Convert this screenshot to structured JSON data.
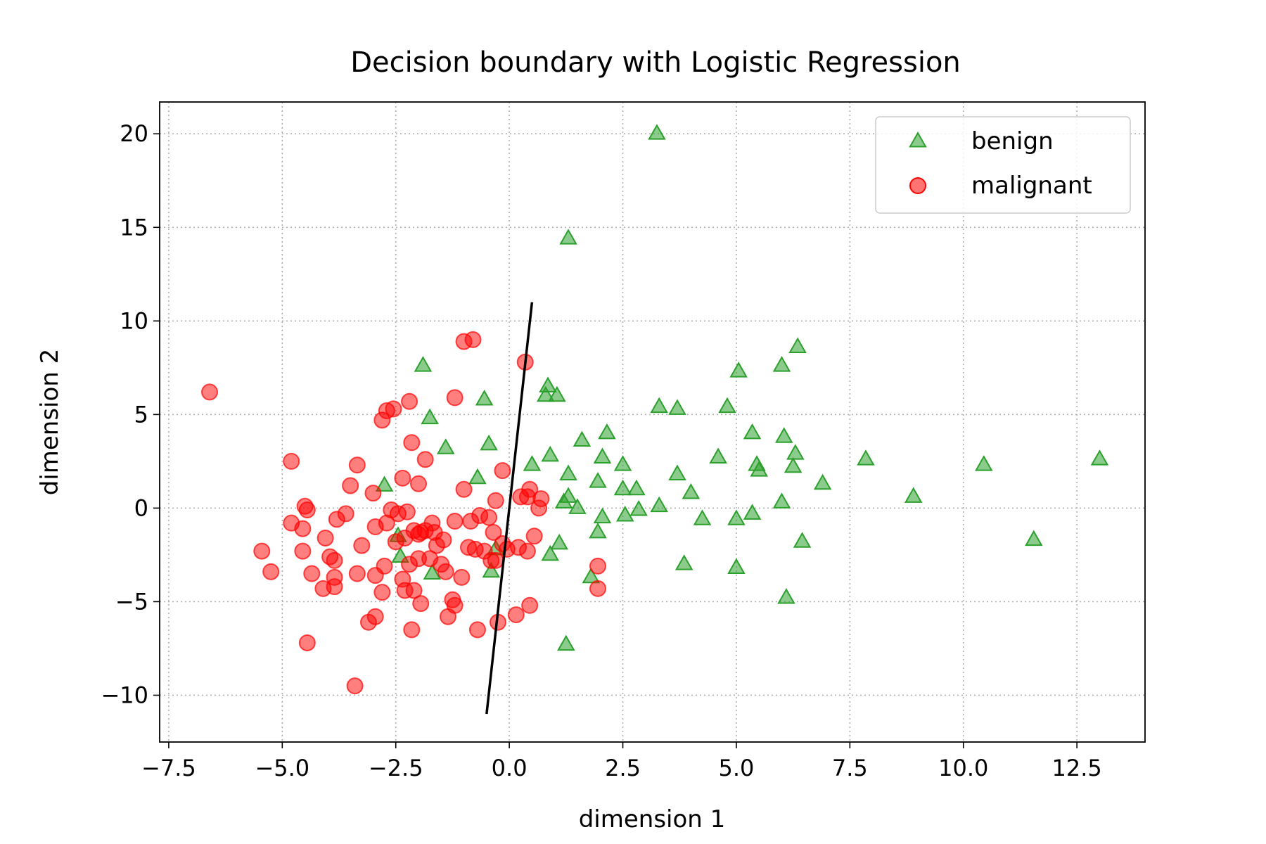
{
  "chart_data": {
    "type": "scatter",
    "title": "Decision boundary with Logistic Regression",
    "xlabel": "dimension 1",
    "ylabel": "dimension 2",
    "xlim": [
      -7.7,
      14.0
    ],
    "ylim": [
      -12.5,
      21.7
    ],
    "xticks": [
      -7.5,
      -5.0,
      -2.5,
      0.0,
      2.5,
      5.0,
      7.5,
      10.0,
      12.5
    ],
    "xtick_labels": [
      "−7.5",
      "−5.0",
      "−2.5",
      "0.0",
      "2.5",
      "5.0",
      "7.5",
      "10.0",
      "12.5"
    ],
    "yticks": [
      -10,
      -5,
      0,
      5,
      10,
      15,
      20
    ],
    "ytick_labels": [
      "−10",
      "−5",
      "0",
      "5",
      "10",
      "15",
      "20"
    ],
    "grid": true,
    "legend_position": "top-right",
    "colors": {
      "benign": "#2ca02c",
      "malignant": "#ff0000",
      "boundary": "#000000"
    },
    "boundary_line": {
      "x": [
        -0.5,
        0.5
      ],
      "y": [
        -11.0,
        11.0
      ]
    },
    "series": [
      {
        "name": "benign",
        "marker": "triangle",
        "points": [
          [
            3.25,
            20.0
          ],
          [
            1.3,
            14.4
          ],
          [
            -1.9,
            7.6
          ],
          [
            0.85,
            6.5
          ],
          [
            0.8,
            6.0
          ],
          [
            1.05,
            6.0
          ],
          [
            -0.55,
            5.8
          ],
          [
            -1.75,
            4.8
          ],
          [
            -1.4,
            3.2
          ],
          [
            -0.45,
            3.4
          ],
          [
            -0.7,
            1.6
          ],
          [
            -2.75,
            1.2
          ],
          [
            0.5,
            2.3
          ],
          [
            0.9,
            2.8
          ],
          [
            1.3,
            1.8
          ],
          [
            1.6,
            3.6
          ],
          [
            2.05,
            2.7
          ],
          [
            2.15,
            4.0
          ],
          [
            2.5,
            2.3
          ],
          [
            1.95,
            1.4
          ],
          [
            1.3,
            0.6
          ],
          [
            1.2,
            0.3
          ],
          [
            1.5,
            0.0
          ],
          [
            2.5,
            1.0
          ],
          [
            2.8,
            1.0
          ],
          [
            2.55,
            -0.4
          ],
          [
            2.85,
            -0.1
          ],
          [
            2.05,
            -0.5
          ],
          [
            1.95,
            -1.3
          ],
          [
            1.1,
            -1.9
          ],
          [
            0.9,
            -2.5
          ],
          [
            1.8,
            -3.7
          ],
          [
            1.25,
            -7.3
          ],
          [
            3.3,
            5.4
          ],
          [
            3.7,
            5.3
          ],
          [
            3.7,
            1.8
          ],
          [
            3.3,
            0.1
          ],
          [
            4.0,
            0.8
          ],
          [
            4.25,
            -0.6
          ],
          [
            3.85,
            -3.0
          ],
          [
            4.6,
            2.7
          ],
          [
            4.8,
            5.4
          ],
          [
            5.05,
            7.3
          ],
          [
            5.35,
            4.0
          ],
          [
            5.45,
            2.3
          ],
          [
            5.5,
            2.0
          ],
          [
            5.0,
            -0.6
          ],
          [
            5.35,
            -0.3
          ],
          [
            5.0,
            -3.2
          ],
          [
            6.0,
            7.6
          ],
          [
            6.35,
            8.6
          ],
          [
            6.05,
            3.8
          ],
          [
            6.3,
            2.9
          ],
          [
            6.25,
            2.2
          ],
          [
            6.0,
            0.3
          ],
          [
            6.45,
            -1.8
          ],
          [
            6.1,
            -4.8
          ],
          [
            6.9,
            1.3
          ],
          [
            7.85,
            2.6
          ],
          [
            8.9,
            0.6
          ],
          [
            10.45,
            2.3
          ],
          [
            11.55,
            -1.7
          ],
          [
            13.0,
            2.6
          ],
          [
            -2.45,
            -1.5
          ],
          [
            -2.4,
            -2.6
          ],
          [
            -1.7,
            -3.5
          ],
          [
            -0.4,
            -3.4
          ],
          [
            -0.3,
            -2.2
          ]
        ]
      },
      {
        "name": "malignant",
        "marker": "circle",
        "points": [
          [
            -6.6,
            6.2
          ],
          [
            -4.8,
            2.5
          ],
          [
            -3.35,
            2.3
          ],
          [
            -3.5,
            1.2
          ],
          [
            -3.0,
            0.8
          ],
          [
            -2.35,
            1.6
          ],
          [
            -2.0,
            1.3
          ],
          [
            -1.85,
            2.6
          ],
          [
            -2.15,
            3.5
          ],
          [
            -2.7,
            5.2
          ],
          [
            -2.55,
            5.3
          ],
          [
            -2.8,
            4.7
          ],
          [
            -2.2,
            5.7
          ],
          [
            -1.2,
            5.9
          ],
          [
            -1.0,
            8.9
          ],
          [
            -0.8,
            9.0
          ],
          [
            0.35,
            7.8
          ],
          [
            -0.15,
            2.0
          ],
          [
            -1.0,
            1.0
          ],
          [
            -0.3,
            0.4
          ],
          [
            0.45,
            1.0
          ],
          [
            0.7,
            0.5
          ],
          [
            0.4,
            0.6
          ],
          [
            -4.5,
            0.1
          ],
          [
            -4.45,
            -0.1
          ],
          [
            -3.8,
            -0.6
          ],
          [
            -3.6,
            -0.3
          ],
          [
            -4.8,
            -0.8
          ],
          [
            -4.55,
            -1.1
          ],
          [
            -4.05,
            -1.6
          ],
          [
            -5.45,
            -2.3
          ],
          [
            -5.25,
            -3.4
          ],
          [
            -4.55,
            -2.3
          ],
          [
            -3.95,
            -2.6
          ],
          [
            -3.85,
            -2.8
          ],
          [
            -4.35,
            -3.5
          ],
          [
            -3.85,
            -3.7
          ],
          [
            -3.85,
            -4.2
          ],
          [
            -4.1,
            -4.3
          ],
          [
            -3.35,
            -3.5
          ],
          [
            -4.45,
            -7.2
          ],
          [
            -3.4,
            -9.5
          ],
          [
            -3.25,
            -2.0
          ],
          [
            -2.95,
            -1.0
          ],
          [
            -2.7,
            -0.8
          ],
          [
            -2.6,
            -0.1
          ],
          [
            -2.45,
            -0.3
          ],
          [
            -2.5,
            -1.8
          ],
          [
            -2.25,
            -0.2
          ],
          [
            -2.1,
            -1.2
          ],
          [
            -2.0,
            -1.4
          ],
          [
            -1.95,
            -1.3
          ],
          [
            -1.85,
            -1.2
          ],
          [
            -1.7,
            -0.8
          ],
          [
            -1.65,
            -1.3
          ],
          [
            -1.6,
            -2.0
          ],
          [
            -1.2,
            -0.7
          ],
          [
            -0.85,
            -0.7
          ],
          [
            -0.65,
            -0.4
          ],
          [
            -0.45,
            -0.5
          ],
          [
            -1.75,
            -2.7
          ],
          [
            -2.0,
            -2.7
          ],
          [
            -2.2,
            -3.0
          ],
          [
            -1.5,
            -3.0
          ],
          [
            -1.4,
            -3.4
          ],
          [
            -1.05,
            -3.7
          ],
          [
            -1.25,
            -4.9
          ],
          [
            -1.2,
            -5.2
          ],
          [
            -1.35,
            -5.8
          ],
          [
            -2.75,
            -3.1
          ],
          [
            -2.95,
            -3.6
          ],
          [
            -2.8,
            -4.5
          ],
          [
            -2.3,
            -4.4
          ],
          [
            -2.35,
            -3.8
          ],
          [
            -2.1,
            -4.4
          ],
          [
            -1.95,
            -5.1
          ],
          [
            -2.15,
            -6.5
          ],
          [
            -2.95,
            -5.8
          ],
          [
            -3.1,
            -6.1
          ],
          [
            -0.9,
            -2.1
          ],
          [
            -0.75,
            -2.2
          ],
          [
            -0.4,
            -2.8
          ],
          [
            -0.55,
            -2.3
          ],
          [
            -0.15,
            -1.9
          ],
          [
            -0.05,
            -2.2
          ],
          [
            0.2,
            -2.1
          ],
          [
            0.4,
            -2.3
          ],
          [
            0.55,
            -1.5
          ],
          [
            -0.35,
            -1.3
          ],
          [
            -0.7,
            -6.5
          ],
          [
            -0.25,
            -6.1
          ],
          [
            0.15,
            -5.7
          ],
          [
            0.45,
            -5.2
          ],
          [
            1.95,
            -3.1
          ],
          [
            1.95,
            -4.3
          ],
          [
            0.65,
            0.0
          ],
          [
            0.25,
            0.6
          ],
          [
            -0.3,
            -2.8
          ],
          [
            -1.45,
            -1.7
          ],
          [
            -2.3,
            -1.6
          ]
        ]
      }
    ]
  }
}
